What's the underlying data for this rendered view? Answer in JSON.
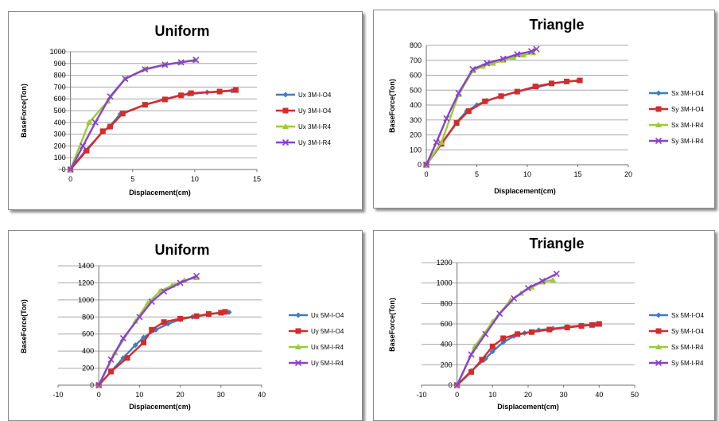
{
  "colors": {
    "series1": "#3e7cc2",
    "series2": "#d42b2b",
    "series3": "#9acd32",
    "series4": "#8a3fd1",
    "grid": "#a8a8a8"
  },
  "chart_data": [
    {
      "type": "line",
      "title": "Uniform",
      "xlabel": "Displacement(cm)",
      "ylabel": "BaseForce(Ton)",
      "xlim": [
        -1,
        15
      ],
      "ylim": [
        0,
        1000
      ],
      "xticks": [
        0,
        5,
        10,
        15
      ],
      "yticks": [
        0,
        100,
        200,
        300,
        400,
        500,
        600,
        700,
        800,
        900,
        1000
      ],
      "grid": true,
      "legend_position": "right",
      "series": [
        {
          "name": "Ux 3M-I-O4",
          "marker": "diamond",
          "x": [
            0,
            1.2,
            2.6,
            3.1,
            4,
            6,
            7.5,
            8.8,
            9.5,
            11,
            12,
            13
          ],
          "y": [
            0,
            160,
            320,
            360,
            470,
            550,
            595,
            630,
            640,
            655,
            660,
            668
          ]
        },
        {
          "name": "Uy 3M-I-O4",
          "marker": "square",
          "x": [
            0,
            1.3,
            2.6,
            3.2,
            4.2,
            6,
            7.6,
            8.9,
            9.7,
            12,
            13.3
          ],
          "y": [
            0,
            160,
            325,
            365,
            475,
            550,
            595,
            630,
            648,
            662,
            675
          ]
        },
        {
          "name": "Ux 3M-I-R4",
          "marker": "triangle",
          "x": [
            0,
            1.5,
            3,
            4.4,
            6,
            7.6,
            8.8,
            10
          ],
          "y": [
            0,
            400,
            580,
            770,
            855,
            890,
            910,
            930
          ]
        },
        {
          "name": "Uy 3M-I-R4",
          "marker": "x",
          "x": [
            0,
            1,
            2,
            3.2,
            4.4,
            6,
            7.6,
            8.9,
            10.1
          ],
          "y": [
            0,
            200,
            400,
            620,
            770,
            850,
            890,
            910,
            930
          ]
        }
      ]
    },
    {
      "type": "line",
      "title": "Triangle",
      "xlabel": "Displacement(cm)",
      "ylabel": "BaseForce(Ton)",
      "xlim": [
        0,
        20
      ],
      "ylim": [
        0,
        800
      ],
      "xticks": [
        0,
        5,
        10,
        15,
        20
      ],
      "yticks": [
        0,
        100,
        200,
        300,
        400,
        500,
        600,
        700,
        800
      ],
      "grid": true,
      "legend_position": "right",
      "series": [
        {
          "name": "Sx 3M-I-O4",
          "marker": "diamond",
          "x": [
            0,
            1.5,
            3,
            4,
            5,
            6,
            7.5,
            9,
            11,
            12.5,
            14,
            15
          ],
          "y": [
            0,
            140,
            285,
            360,
            400,
            430,
            460,
            490,
            520,
            545,
            558,
            562
          ]
        },
        {
          "name": "Sy 3M-I-O4",
          "marker": "square",
          "x": [
            0,
            1.5,
            3,
            4.2,
            5.8,
            7.4,
            9,
            10.8,
            12.4,
            13.9,
            15.2
          ],
          "y": [
            0,
            140,
            280,
            360,
            425,
            460,
            490,
            525,
            545,
            558,
            565
          ]
        },
        {
          "name": "Sx 3M-I-R4",
          "marker": "triangle",
          "x": [
            0,
            1.5,
            3.2,
            4.6,
            5.6,
            6.6,
            7.6,
            8.6,
            9.6,
            10.6
          ],
          "y": [
            0,
            150,
            470,
            630,
            660,
            680,
            700,
            720,
            735,
            750
          ]
        },
        {
          "name": "Sy 3M-I-R4",
          "marker": "x",
          "x": [
            0,
            1,
            2,
            3.2,
            4.6,
            6,
            7.6,
            9,
            10.4,
            10.9
          ],
          "y": [
            0,
            150,
            310,
            480,
            640,
            680,
            710,
            740,
            760,
            775
          ]
        }
      ]
    },
    {
      "type": "line",
      "title": "Uniform",
      "xlabel": "Displacement(cm)",
      "ylabel": "BaseForce(Ton)",
      "xlim": [
        -10,
        40
      ],
      "ylim": [
        0,
        1400
      ],
      "xticks": [
        -10,
        0,
        10,
        20,
        30,
        40
      ],
      "yticks": [
        0,
        200,
        400,
        600,
        800,
        1000,
        1200,
        1400
      ],
      "grid": true,
      "legend_position": "right",
      "series": [
        {
          "name": "Ux 5M-I-O4",
          "marker": "diamond",
          "x": [
            0,
            3,
            6,
            9,
            11,
            14,
            17,
            20,
            23,
            27,
            30,
            32
          ],
          "y": [
            0,
            160,
            320,
            470,
            560,
            650,
            720,
            770,
            800,
            830,
            850,
            855
          ]
        },
        {
          "name": "Uy 5M-I-O4",
          "marker": "square",
          "x": [
            0,
            3,
            7,
            11,
            13,
            16,
            20,
            24,
            27,
            30,
            31
          ],
          "y": [
            0,
            160,
            320,
            500,
            650,
            740,
            780,
            810,
            835,
            850,
            860
          ]
        },
        {
          "name": "Ux 5M-I-R4",
          "marker": "triangle",
          "x": [
            0,
            4,
            9,
            12,
            15,
            18,
            21,
            24
          ],
          "y": [
            0,
            380,
            750,
            960,
            1100,
            1170,
            1230,
            1260
          ]
        },
        {
          "name": "Uy 5M-I-R4",
          "marker": "x",
          "x": [
            0,
            3,
            6,
            10,
            13,
            16,
            20,
            24
          ],
          "y": [
            0,
            300,
            550,
            800,
            980,
            1100,
            1200,
            1280
          ]
        }
      ]
    },
    {
      "type": "line",
      "title": "Triangle",
      "xlabel": "Displacement(cm)",
      "ylabel": "BaseForce(Ton)",
      "xlim": [
        -10,
        50
      ],
      "ylim": [
        0,
        1200
      ],
      "xticks": [
        -10,
        0,
        10,
        20,
        30,
        40,
        50
      ],
      "yticks": [
        0,
        200,
        400,
        600,
        800,
        1000,
        1200
      ],
      "grid": true,
      "legend_position": "right",
      "series": [
        {
          "name": "Sx 5M-I-O4",
          "marker": "diamond",
          "x": [
            0,
            4,
            8,
            10,
            13,
            16,
            19,
            23,
            27,
            31,
            35,
            39
          ],
          "y": [
            0,
            140,
            260,
            330,
            420,
            480,
            510,
            540,
            555,
            570,
            585,
            595
          ]
        },
        {
          "name": "Sy 5M-I-O4",
          "marker": "square",
          "x": [
            0,
            4,
            7,
            10,
            13,
            17,
            21,
            26,
            31,
            35,
            38,
            40
          ],
          "y": [
            0,
            130,
            250,
            380,
            460,
            500,
            520,
            545,
            565,
            580,
            590,
            600
          ]
        },
        {
          "name": "Sx 5M-I-R4",
          "marker": "triangle",
          "x": [
            0,
            5,
            10,
            15,
            18,
            21,
            24,
            27
          ],
          "y": [
            0,
            380,
            620,
            830,
            900,
            960,
            1010,
            1030
          ]
        },
        {
          "name": "Sy 5M-I-R4",
          "marker": "x",
          "x": [
            0,
            4,
            8,
            12,
            16,
            20,
            24,
            28
          ],
          "y": [
            0,
            300,
            500,
            700,
            850,
            950,
            1020,
            1090
          ]
        }
      ]
    }
  ]
}
